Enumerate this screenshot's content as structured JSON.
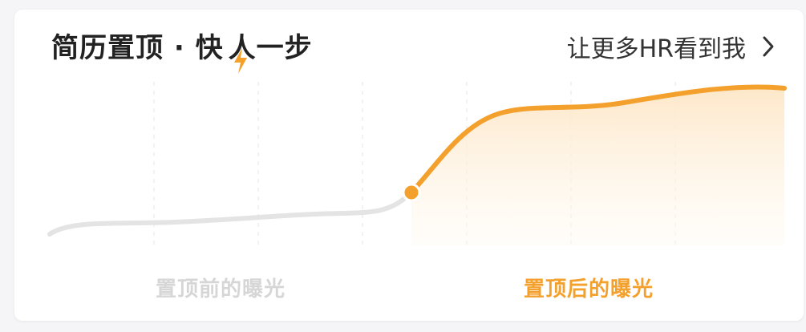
{
  "header": {
    "title_left": "简历置顶 · 快",
    "title_right": "人一步",
    "link_label": "让更多HR看到我"
  },
  "chart": {
    "before_label": "置顶前的曝光",
    "after_label": "置顶后的曝光"
  },
  "icons": {
    "bolt": "lightning-icon",
    "arrow": "chevron-right-icon"
  },
  "colors": {
    "accent": "#f3a02c",
    "muted_line": "#e4e4e4",
    "title": "#222222"
  }
}
